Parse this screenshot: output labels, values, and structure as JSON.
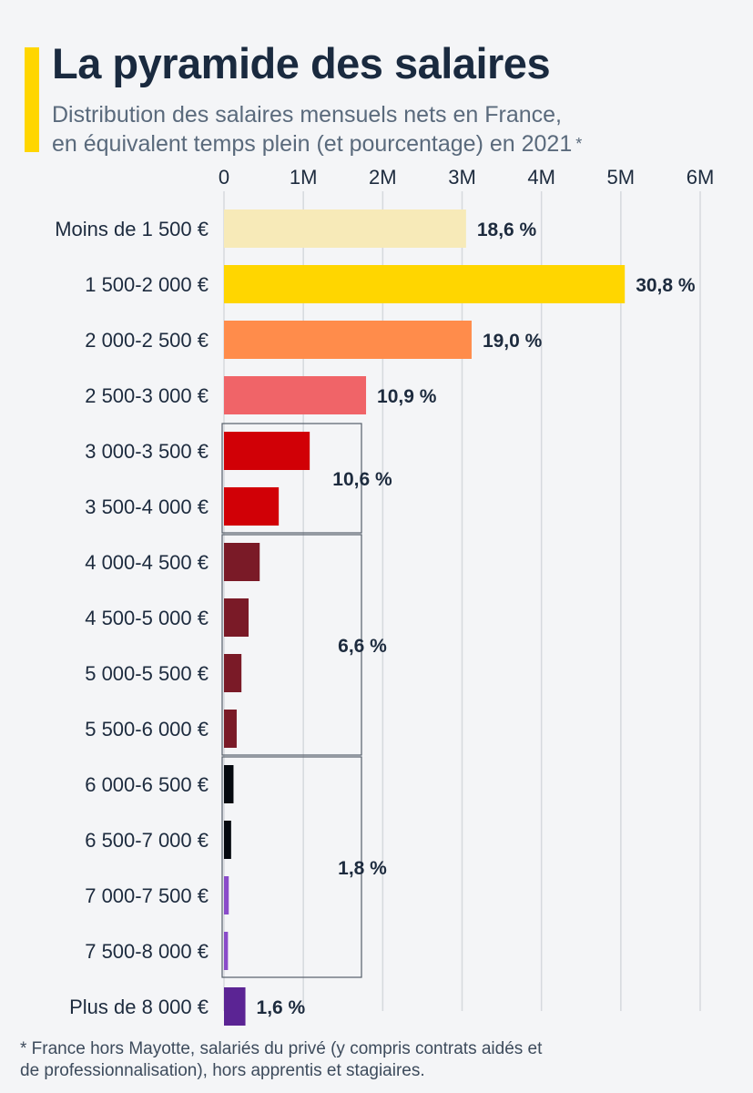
{
  "title": "La pyramide des salaires",
  "subtitle_line1": "Distribution des salaires mensuels nets en France,",
  "subtitle_line2": "en équivalent temps plein (et pourcentage) en 2021",
  "subtitle_note_marker": "*",
  "footnote_line1": "* France hors Mayotte, salariés du privé (y compris contrats aidés et",
  "footnote_line2": "de professionnalisation), hors apprentis et stagiaires.",
  "colors": {
    "accent": "#ffd600",
    "grid": "#d6d9de",
    "group_box": "#555e6a"
  },
  "chart_data": {
    "type": "bar",
    "orientation": "horizontal",
    "title": "La pyramide des salaires",
    "xlabel": "",
    "ylabel": "",
    "xlim": [
      0,
      6000000
    ],
    "x_ticks": [
      0,
      1000000,
      2000000,
      3000000,
      4000000,
      5000000,
      6000000
    ],
    "x_tick_labels": [
      "0",
      "1M",
      "2M",
      "3M",
      "4M",
      "5M",
      "6M"
    ],
    "grid": true,
    "categories": [
      "Moins de 1 500 €",
      "1 500-2 000 €",
      "2 000-2 500 €",
      "2 500-3 000 €",
      "3 000-3 500 €",
      "3 500-4 000 €",
      "4 000-4 500 €",
      "4 500-5 000 €",
      "5 000-5 500 €",
      "5 500-6 000 €",
      "6 000-6 500 €",
      "6 500-7 000 €",
      "7 000-7 500 €",
      "7 500-8 000 €",
      "Plus de 8 000 €"
    ],
    "values": [
      3050000,
      5050000,
      3120000,
      1790000,
      1080000,
      690000,
      450000,
      310000,
      220000,
      160000,
      120000,
      90000,
      60000,
      50000,
      270000
    ],
    "colors": [
      "#f7eab8",
      "#ffd600",
      "#ff8c4b",
      "#f06468",
      "#d10006",
      "#d10006",
      "#7a1a27",
      "#7a1a27",
      "#7a1a27",
      "#7a1a27",
      "#05090f",
      "#05090f",
      "#8a4cc9",
      "#8a4cc9",
      "#5b2494"
    ],
    "bar_labels": [
      {
        "index": 0,
        "text": "18,6 %"
      },
      {
        "index": 1,
        "text": "30,8 %"
      },
      {
        "index": 2,
        "text": "19,0 %"
      },
      {
        "index": 3,
        "text": "10,9 %"
      },
      {
        "index": 14,
        "text": "1,6 %"
      }
    ],
    "groups": [
      {
        "from": 4,
        "to": 5,
        "label": "10,6 %"
      },
      {
        "from": 6,
        "to": 9,
        "label": "6,6 %"
      },
      {
        "from": 10,
        "to": 13,
        "label": "1,8 %"
      }
    ]
  }
}
